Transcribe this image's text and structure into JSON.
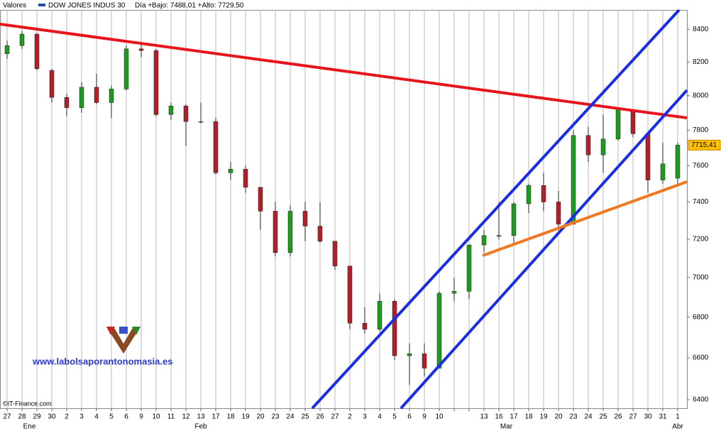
{
  "chart_data": {
    "type": "candlestick",
    "header_label": "Valores",
    "title": "DOW JONES INDUS 30",
    "day_info": "Día +Bajo: 7488,01 +Alto: 7729,50",
    "categories": [
      "27",
      "28",
      "29",
      "30",
      "2",
      "3",
      "4",
      "5",
      "6",
      "9",
      "10",
      "11",
      "12",
      "13",
      "17",
      "18",
      "19",
      "20",
      "23",
      "24",
      "25",
      "26",
      "27",
      "2",
      "3",
      "4",
      "5",
      "6",
      "9",
      "10",
      null,
      null,
      "13",
      "16",
      "17",
      "18",
      "19",
      "20",
      "23",
      "24",
      "25",
      "26",
      "27",
      "30",
      "31",
      "1"
    ],
    "months": [
      "Ene",
      "Feb",
      "Mar",
      "Abr"
    ],
    "open": [
      8250,
      8300,
      8370,
      8150,
      7990,
      7930,
      8050,
      7960,
      8040,
      8280,
      8270,
      7890,
      7940,
      7850,
      7850,
      7560,
      7580,
      7480,
      7350,
      7130,
      7350,
      7270,
      7190,
      7060,
      6770,
      6740,
      6880,
      6610,
      6620,
      6550,
      6920,
      6930,
      7170,
      7220,
      7220,
      7390,
      7490,
      7400,
      7280,
      7770,
      7660,
      7750,
      7920,
      7780,
      7520,
      7530
    ],
    "high": [
      8330,
      8390,
      8380,
      8160,
      8010,
      8080,
      8130,
      8060,
      8300,
      8320,
      8280,
      7960,
      7950,
      7960,
      7870,
      7620,
      7600,
      7480,
      7400,
      7380,
      7400,
      7400,
      7190,
      7060,
      6850,
      6920,
      6890,
      6670,
      6670,
      6930,
      7000,
      7170,
      7250,
      7400,
      7400,
      7500,
      7560,
      7460,
      7800,
      7820,
      7890,
      7930,
      7920,
      7780,
      7730,
      7729.5
    ],
    "low": [
      8220,
      8280,
      8150,
      7960,
      7880,
      7900,
      7950,
      7870,
      8030,
      8230,
      7880,
      7860,
      7710,
      7840,
      7550,
      7520,
      7450,
      7250,
      7110,
      7110,
      7190,
      7180,
      7040,
      6740,
      6720,
      6730,
      6590,
      6470,
      6510,
      6550,
      6880,
      6890,
      7130,
      7200,
      7180,
      7340,
      7350,
      7260,
      7280,
      7620,
      7560,
      7740,
      7760,
      7450,
      7500,
      7488.01
    ],
    "close": [
      8300,
      8370,
      8160,
      7990,
      7930,
      8050,
      7960,
      8040,
      8280,
      8270,
      7890,
      7940,
      7850,
      7850,
      7560,
      7580,
      7480,
      7350,
      7130,
      7350,
      7270,
      7190,
      7060,
      6770,
      6740,
      6880,
      6610,
      6620,
      6550,
      6920,
      6930,
      7170,
      7220,
      7220,
      7390,
      7490,
      7400,
      7280,
      7770,
      7660,
      7750,
      7920,
      7780,
      7520,
      7610,
      7715.41
    ],
    "up_color": "#1e9a1e",
    "down_color": "#b0202a",
    "ylim": [
      6360,
      8520
    ],
    "yticks": [
      6400,
      6600,
      6800,
      7000,
      7200,
      7400,
      7600,
      7800,
      8000,
      8200,
      8400
    ],
    "log_scale": true,
    "grid": true,
    "last_price": {
      "value": 7715.41,
      "label": "7715,41"
    },
    "watermark": "www.labolsaporantonomasia.es",
    "credit": "©IT-Finance.com"
  }
}
